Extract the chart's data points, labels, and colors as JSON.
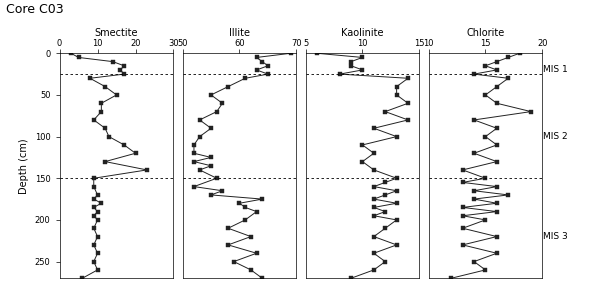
{
  "title": "Core C03",
  "panels": [
    {
      "mineral": "Smectite",
      "xlim": [
        0.0,
        30.0
      ],
      "xticks": [
        0.0,
        10.0,
        20.0,
        30.0
      ],
      "depth": [
        0,
        5,
        10,
        15,
        20,
        25,
        30,
        40,
        50,
        60,
        70,
        80,
        90,
        100,
        110,
        120,
        130,
        140,
        150,
        160,
        170,
        175,
        180,
        185,
        190,
        195,
        200,
        210,
        220,
        230,
        240,
        250,
        260,
        270
      ],
      "values": [
        3,
        5,
        14,
        17,
        16,
        17,
        8,
        12,
        15,
        11,
        11,
        9,
        12,
        13,
        17,
        20,
        12,
        23,
        9,
        9,
        10,
        9,
        11,
        9,
        10,
        9,
        10,
        9,
        10,
        9,
        10,
        9,
        10,
        6
      ]
    },
    {
      "mineral": "Illite",
      "xlim": [
        50.0,
        70.0
      ],
      "xticks": [
        50.0,
        60.0,
        70.0
      ],
      "depth": [
        0,
        5,
        10,
        15,
        20,
        25,
        30,
        40,
        50,
        60,
        70,
        80,
        90,
        100,
        110,
        120,
        125,
        130,
        135,
        140,
        150,
        160,
        165,
        170,
        175,
        180,
        185,
        190,
        200,
        210,
        220,
        230,
        240,
        250,
        260,
        270
      ],
      "values": [
        69,
        63,
        64,
        65,
        63,
        65,
        61,
        58,
        55,
        57,
        56,
        53,
        55,
        53,
        52,
        52,
        55,
        52,
        55,
        53,
        56,
        52,
        57,
        55,
        64,
        60,
        61,
        63,
        61,
        58,
        62,
        58,
        63,
        59,
        62,
        64
      ]
    },
    {
      "mineral": "Kaolinite",
      "xlim": [
        5.0,
        15.0
      ],
      "xticks": [
        5.0,
        10.0,
        15.0
      ],
      "depth": [
        0,
        5,
        10,
        15,
        20,
        25,
        30,
        40,
        50,
        60,
        70,
        80,
        90,
        100,
        110,
        120,
        130,
        140,
        150,
        155,
        160,
        165,
        170,
        175,
        180,
        185,
        190,
        195,
        200,
        210,
        220,
        230,
        240,
        250,
        260,
        270
      ],
      "values": [
        6,
        10,
        9,
        9,
        10,
        8,
        14,
        13,
        13,
        14,
        12,
        14,
        11,
        13,
        10,
        11,
        10,
        11,
        13,
        12,
        11,
        13,
        12,
        11,
        13,
        11,
        12,
        11,
        13,
        12,
        11,
        13,
        11,
        12,
        11,
        9
      ]
    },
    {
      "mineral": "Chlorite",
      "xlim": [
        10.0,
        20.0
      ],
      "xticks": [
        10.0,
        15.0,
        20.0
      ],
      "depth": [
        0,
        5,
        10,
        15,
        20,
        25,
        30,
        40,
        50,
        60,
        70,
        80,
        90,
        100,
        110,
        120,
        130,
        140,
        150,
        155,
        160,
        165,
        170,
        175,
        180,
        185,
        190,
        195,
        200,
        210,
        220,
        230,
        240,
        250,
        260,
        270
      ],
      "values": [
        18,
        17,
        16,
        15,
        16,
        14,
        17,
        16,
        15,
        16,
        19,
        14,
        16,
        15,
        16,
        14,
        16,
        13,
        15,
        13,
        16,
        14,
        17,
        14,
        16,
        13,
        16,
        13,
        15,
        13,
        16,
        13,
        16,
        14,
        15,
        12
      ]
    }
  ],
  "ylim": [
    270,
    0
  ],
  "yticks": [
    0,
    50,
    100,
    150,
    200,
    250
  ],
  "hlines": [
    25,
    150
  ],
  "mis_labels": [
    {
      "text": "MIS 1",
      "y": 20
    },
    {
      "text": "MIS 2",
      "y": 100
    },
    {
      "text": "MIS 3",
      "y": 220
    }
  ],
  "ylabel": "Depth (cm)",
  "background_color": "#ffffff",
  "line_color": "#222222",
  "marker": "s",
  "markersize": 2.5,
  "linewidth": 0.7,
  "fontsize_title": 9,
  "fontsize_axis": 7,
  "fontsize_tick": 6,
  "fontsize_mis": 6.5
}
